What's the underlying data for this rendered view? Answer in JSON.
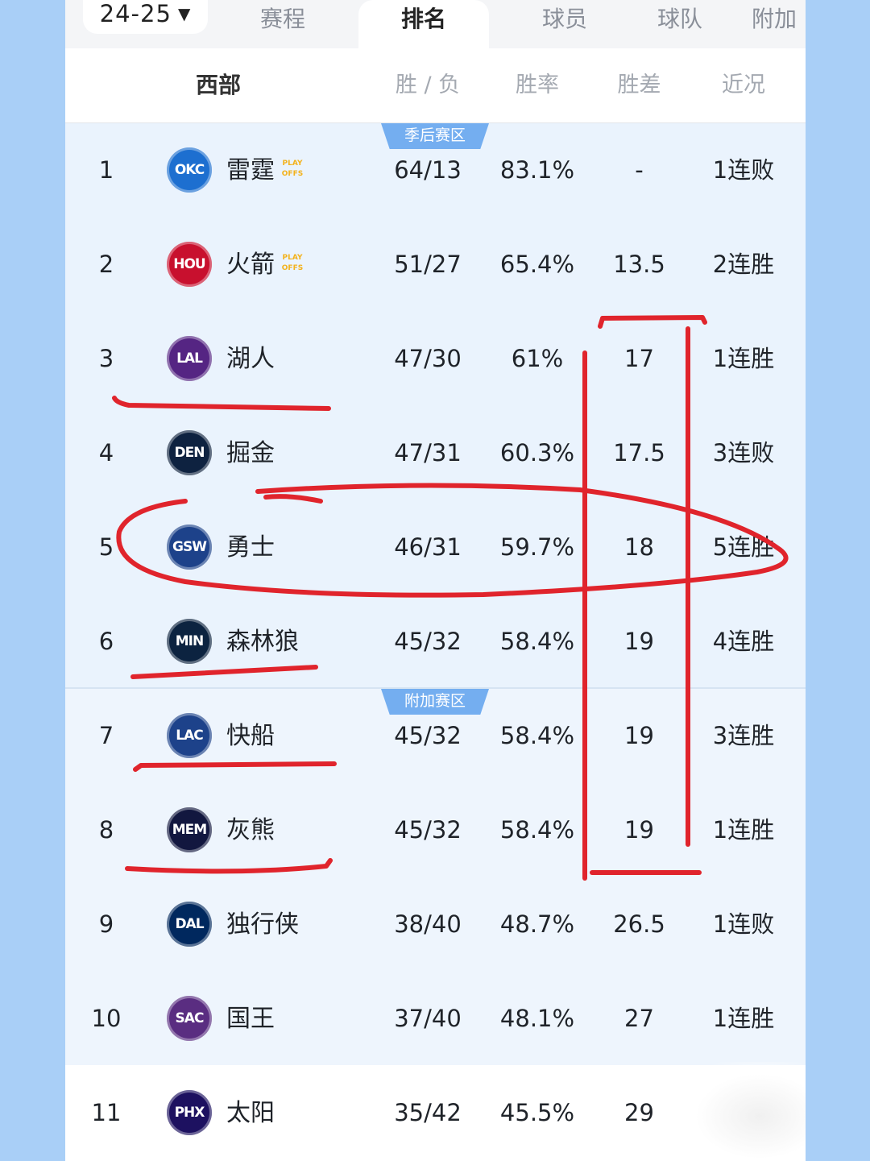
{
  "tabs": {
    "season": "24-25",
    "items": [
      "赛程",
      "排名",
      "球员",
      "球队",
      "附加"
    ],
    "active_index": 1
  },
  "table_header": {
    "conference": "西部",
    "wl": "胜 / 负",
    "pct": "胜率",
    "gb": "胜差",
    "streak": "近况"
  },
  "zones": {
    "playoff": "季后赛区",
    "playin": "附加赛区"
  },
  "playoff_tag": "PLAY OFFS",
  "colors": {
    "accent_badge": "#74aef0",
    "zone_bg": "#eaf3fd",
    "page_bg": "#a9cff7",
    "annotation_red": "#e0242c"
  },
  "rows": [
    {
      "rank": "1",
      "logo": "OKC",
      "logo_color": "#1d6fd0",
      "team": "雷霆",
      "playoffs": true,
      "wl": "64/13",
      "pct": "83.1%",
      "gb": "-",
      "streak": "1连败"
    },
    {
      "rank": "2",
      "logo": "HOU",
      "logo_color": "#c8102e",
      "team": "火箭",
      "playoffs": true,
      "wl": "51/27",
      "pct": "65.4%",
      "gb": "13.5",
      "streak": "2连胜"
    },
    {
      "rank": "3",
      "logo": "LAL",
      "logo_color": "#552583",
      "team": "湖人",
      "playoffs": false,
      "wl": "47/30",
      "pct": "61%",
      "gb": "17",
      "streak": "1连胜"
    },
    {
      "rank": "4",
      "logo": "DEN",
      "logo_color": "#0e2240",
      "team": "掘金",
      "playoffs": false,
      "wl": "47/31",
      "pct": "60.3%",
      "gb": "17.5",
      "streak": "3连败"
    },
    {
      "rank": "5",
      "logo": "GSW",
      "logo_color": "#1d428a",
      "team": "勇士",
      "playoffs": false,
      "wl": "46/31",
      "pct": "59.7%",
      "gb": "18",
      "streak": "5连胜"
    },
    {
      "rank": "6",
      "logo": "MIN",
      "logo_color": "#0c2340",
      "team": "森林狼",
      "playoffs": false,
      "wl": "45/32",
      "pct": "58.4%",
      "gb": "19",
      "streak": "4连胜"
    },
    {
      "rank": "7",
      "logo": "LAC",
      "logo_color": "#1d428a",
      "team": "快船",
      "playoffs": false,
      "wl": "45/32",
      "pct": "58.4%",
      "gb": "19",
      "streak": "3连胜"
    },
    {
      "rank": "8",
      "logo": "MEM",
      "logo_color": "#12173f",
      "team": "灰熊",
      "playoffs": false,
      "wl": "45/32",
      "pct": "58.4%",
      "gb": "19",
      "streak": "1连胜"
    },
    {
      "rank": "9",
      "logo": "DAL",
      "logo_color": "#00285e",
      "team": "独行侠",
      "playoffs": false,
      "wl": "38/40",
      "pct": "48.7%",
      "gb": "26.5",
      "streak": "1连败"
    },
    {
      "rank": "10",
      "logo": "SAC",
      "logo_color": "#5a2d81",
      "team": "国王",
      "playoffs": false,
      "wl": "37/40",
      "pct": "48.1%",
      "gb": "27",
      "streak": "1连胜"
    },
    {
      "rank": "11",
      "logo": "PHX",
      "logo_color": "#1d1160",
      "team": "太阳",
      "playoffs": false,
      "wl": "35/42",
      "pct": "45.5%",
      "gb": "29",
      "streak": ""
    }
  ]
}
